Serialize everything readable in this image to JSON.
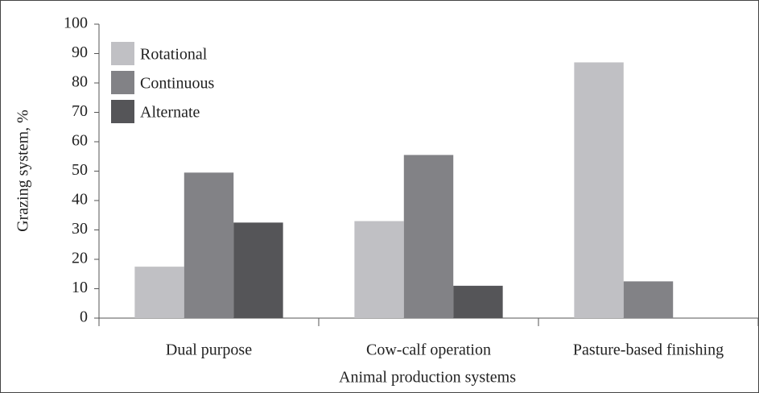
{
  "chart_data": {
    "type": "bar",
    "categories": [
      "Dual purpose",
      "Cow-calf operation",
      "Pasture-based finishing"
    ],
    "series": [
      {
        "name": "Rotational",
        "color": "#c0c0c4",
        "values": [
          17.5,
          33,
          87
        ]
      },
      {
        "name": "Continuous",
        "color": "#828286",
        "values": [
          49.5,
          55.5,
          12.5
        ]
      },
      {
        "name": "Alternate",
        "color": "#555558",
        "values": [
          32.5,
          11,
          0
        ]
      }
    ],
    "ylim": [
      0,
      100
    ],
    "yticks": [
      0,
      10,
      20,
      30,
      40,
      50,
      60,
      70,
      80,
      90,
      100
    ],
    "ylabel": "Grazing system, %",
    "xlabel": "Animal production systems",
    "legend": "upper left"
  }
}
